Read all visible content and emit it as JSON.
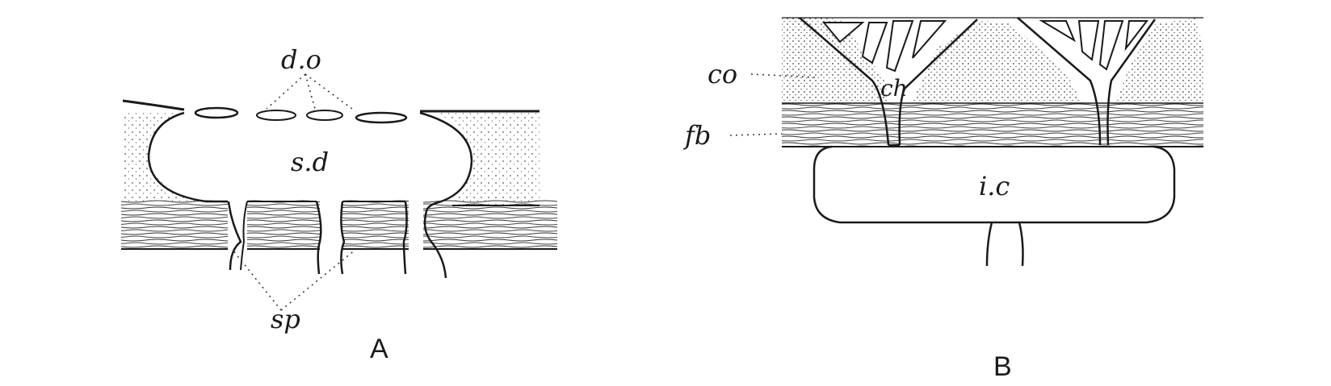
{
  "panel_a": {
    "caption": "A",
    "labels": {
      "do": "d.o",
      "sd": "s.d",
      "sp": "sp"
    }
  },
  "panel_b": {
    "caption": "B",
    "labels": {
      "co": "co",
      "ch": "ch",
      "fb": "fb",
      "ic": "i.c"
    }
  },
  "colors": {
    "ink": "#1a1a1a",
    "paper": "#ffffff"
  }
}
